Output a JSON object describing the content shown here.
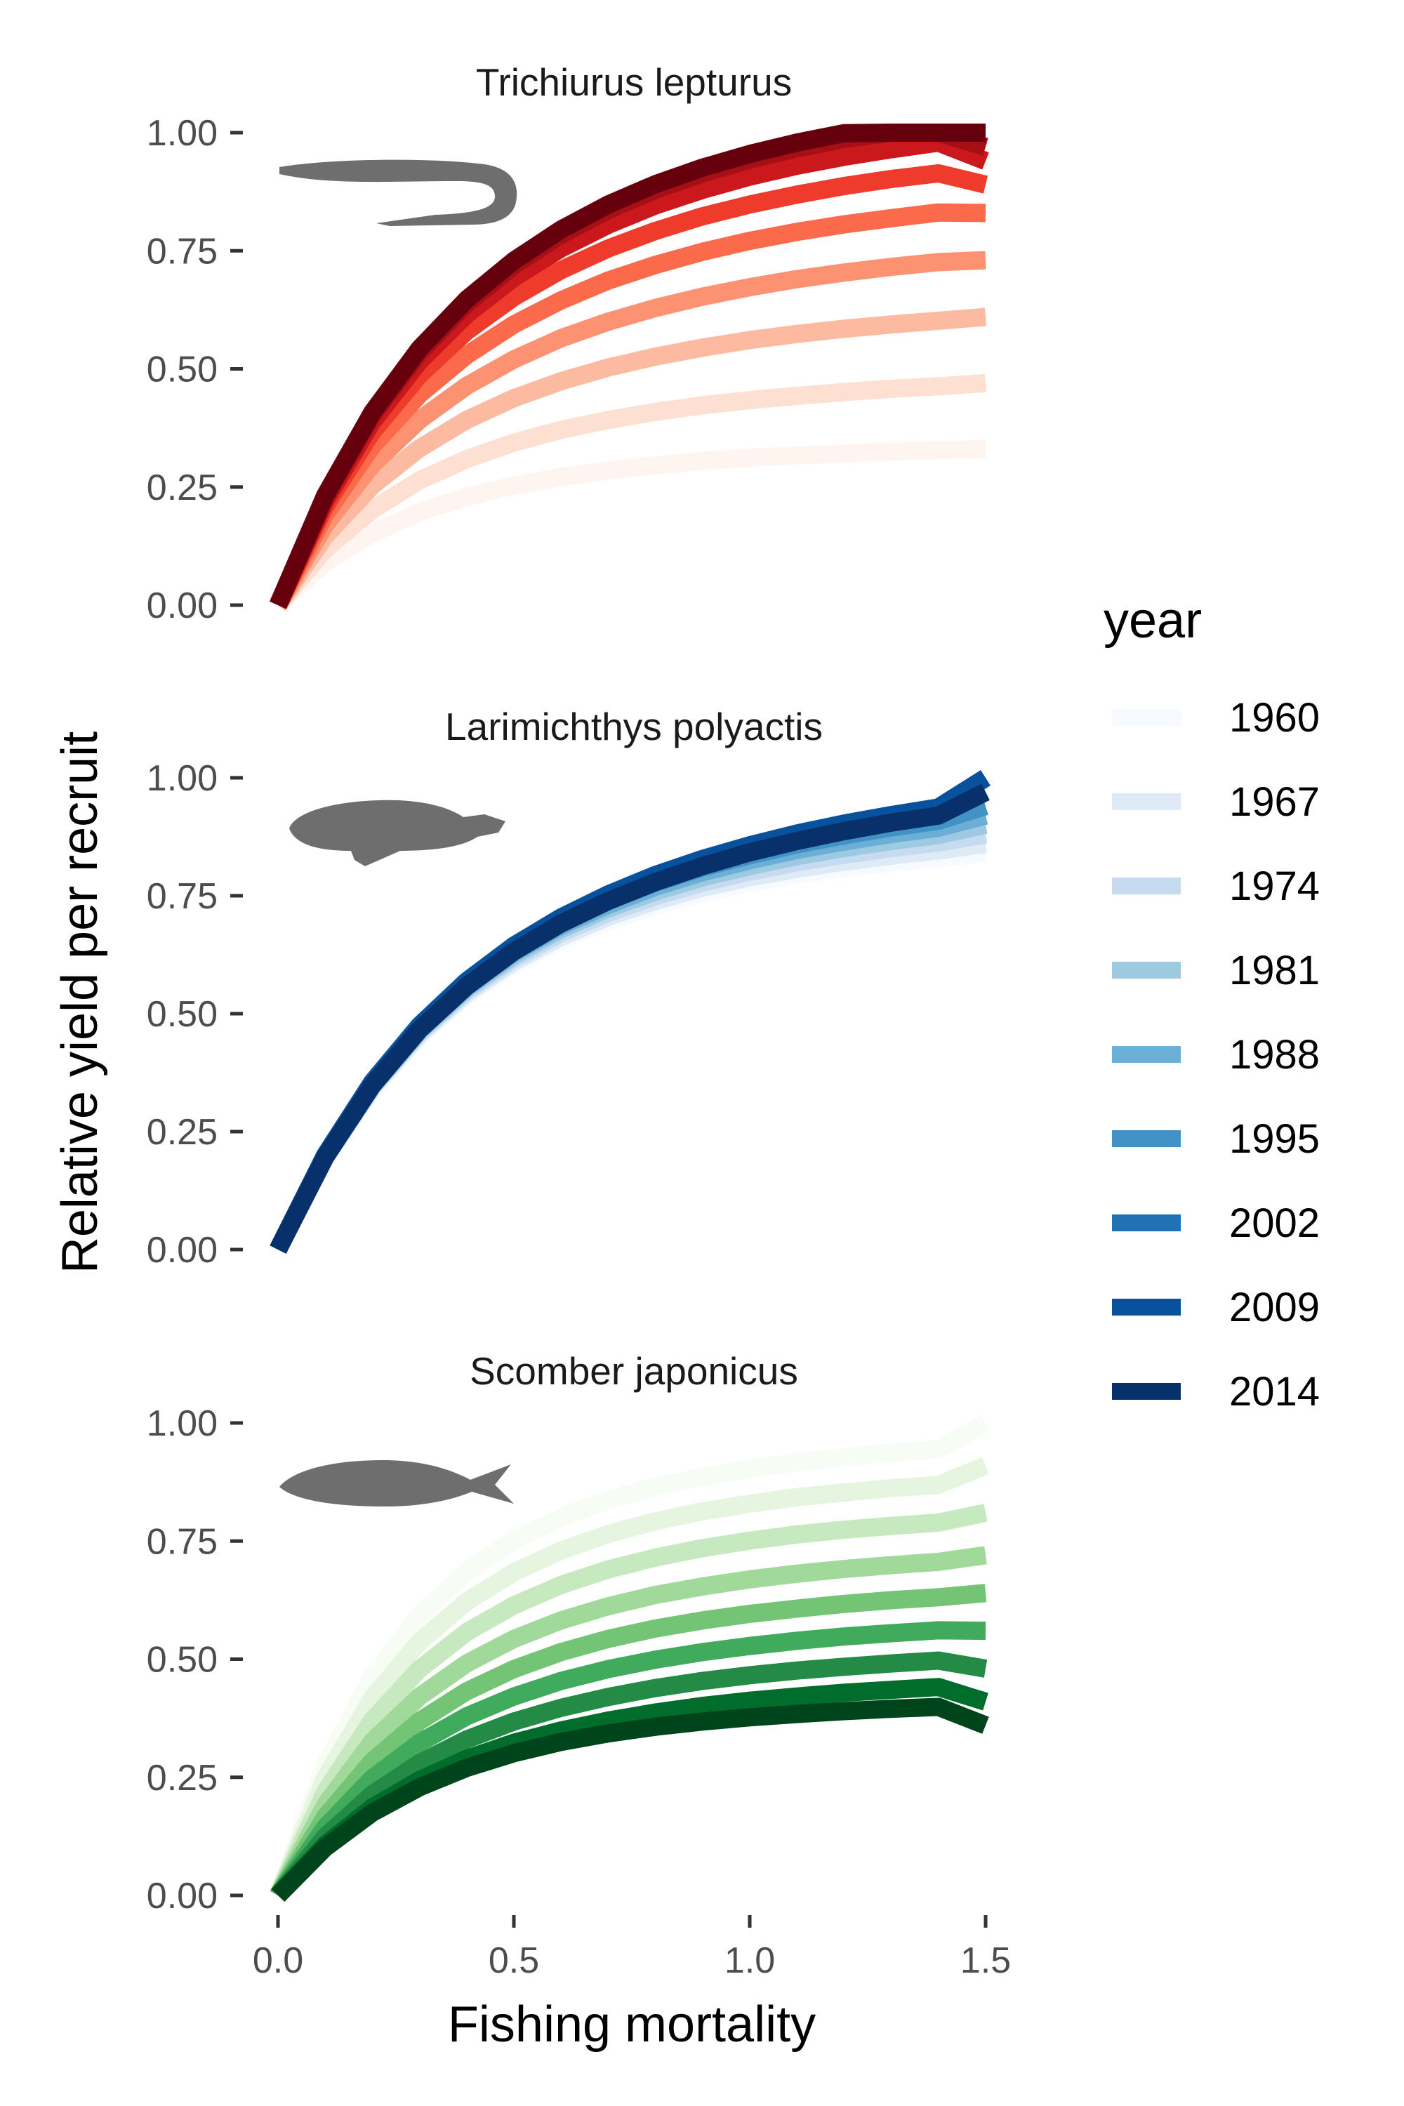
{
  "figure": {
    "xlabel": "Fishing mortality",
    "ylabel": "Relative yield per recruit"
  },
  "legend": {
    "title": "year",
    "position": "right",
    "labels": [
      "1960",
      "1967",
      "1974",
      "1981",
      "1988",
      "1995",
      "2002",
      "2009",
      "2014"
    ],
    "key_colors": [
      "#F7FBFF",
      "#DEEBF7",
      "#C6DBEF",
      "#9ECAE1",
      "#6BAED6",
      "#4292C6",
      "#2171B5",
      "#08519C",
      "#08306B"
    ]
  },
  "chart_data": [
    {
      "type": "line",
      "title": "Trichiurus lepturus",
      "icon": "ribbonfish-silhouette-icon",
      "xlim": [
        0,
        1.5
      ],
      "ylim": [
        0,
        1.0
      ],
      "x_ticks": [
        "0.0",
        "0.5",
        "1.0",
        "1.5"
      ],
      "y_ticks": [
        "0.00",
        "0.25",
        "0.50",
        "0.75",
        "1.00"
      ],
      "x": [
        0,
        0.1,
        0.2,
        0.3,
        0.4,
        0.5,
        0.6,
        0.7,
        0.8,
        0.9,
        1.0,
        1.1,
        1.2,
        1.3,
        1.4,
        1.5
      ],
      "series": [
        {
          "year": "1960",
          "color": "#FFF5F0",
          "values": [
            0.0,
            0.09,
            0.152,
            0.197,
            0.229,
            0.253,
            0.271,
            0.285,
            0.296,
            0.305,
            0.312,
            0.317,
            0.321,
            0.325,
            0.328,
            0.33
          ]
        },
        {
          "year": "1967",
          "color": "#FEE0D2",
          "values": [
            0.0,
            0.118,
            0.202,
            0.264,
            0.309,
            0.344,
            0.371,
            0.392,
            0.409,
            0.423,
            0.434,
            0.443,
            0.451,
            0.458,
            0.463,
            0.47
          ]
        },
        {
          "year": "1974",
          "color": "#FCBBA1",
          "values": [
            0.0,
            0.146,
            0.253,
            0.332,
            0.392,
            0.438,
            0.474,
            0.503,
            0.526,
            0.545,
            0.561,
            0.574,
            0.585,
            0.594,
            0.602,
            0.61
          ]
        },
        {
          "year": "1981",
          "color": "#FC9272",
          "values": [
            0.0,
            0.17,
            0.297,
            0.392,
            0.464,
            0.52,
            0.565,
            0.6,
            0.629,
            0.653,
            0.673,
            0.69,
            0.704,
            0.716,
            0.726,
            0.73
          ]
        },
        {
          "year": "1988",
          "color": "#FB6A4A",
          "values": [
            0.0,
            0.192,
            0.337,
            0.446,
            0.529,
            0.594,
            0.645,
            0.687,
            0.72,
            0.748,
            0.771,
            0.79,
            0.806,
            0.819,
            0.831,
            0.83
          ]
        },
        {
          "year": "1995",
          "color": "#EF3B2C",
          "values": [
            0.0,
            0.209,
            0.367,
            0.487,
            0.58,
            0.652,
            0.709,
            0.755,
            0.792,
            0.823,
            0.848,
            0.869,
            0.887,
            0.902,
            0.914,
            0.89
          ]
        },
        {
          "year": "2002",
          "color": "#CB181D",
          "values": [
            0.0,
            0.22,
            0.388,
            0.516,
            0.615,
            0.693,
            0.755,
            0.805,
            0.846,
            0.879,
            0.907,
            0.93,
            0.949,
            0.965,
            0.979,
            0.94
          ]
        },
        {
          "year": "2009",
          "color": "#A50F15",
          "values": [
            0.0,
            0.228,
            0.402,
            0.535,
            0.638,
            0.719,
            0.784,
            0.836,
            0.879,
            0.914,
            0.943,
            0.967,
            0.987,
            1.0,
            1.0,
            0.97
          ]
        },
        {
          "year": "2014",
          "color": "#67000D",
          "values": [
            0.0,
            0.232,
            0.408,
            0.543,
            0.647,
            0.729,
            0.795,
            0.848,
            0.891,
            0.926,
            0.955,
            0.979,
            0.999,
            1.0,
            1.0,
            1.0
          ]
        }
      ]
    },
    {
      "type": "line",
      "title": "Larimichthys polyactis",
      "icon": "croaker-silhouette-icon",
      "xlim": [
        0,
        1.5
      ],
      "ylim": [
        0,
        1.0
      ],
      "x_ticks": [
        "0.0",
        "0.5",
        "1.0",
        "1.5"
      ],
      "y_ticks": [
        "0.00",
        "0.25",
        "0.50",
        "0.75",
        "1.00"
      ],
      "x": [
        0,
        0.1,
        0.2,
        0.3,
        0.4,
        0.5,
        0.6,
        0.7,
        0.8,
        0.9,
        1.0,
        1.1,
        1.2,
        1.3,
        1.4,
        1.5
      ],
      "series": [
        {
          "year": "1960",
          "color": "#F7FBFF",
          "values": [
            0.0,
            0.193,
            0.34,
            0.452,
            0.537,
            0.603,
            0.655,
            0.696,
            0.729,
            0.756,
            0.777,
            0.795,
            0.809,
            0.82,
            0.83,
            0.84
          ]
        },
        {
          "year": "1967",
          "color": "#DEEBF7",
          "values": [
            0.0,
            0.194,
            0.343,
            0.456,
            0.543,
            0.61,
            0.663,
            0.705,
            0.739,
            0.767,
            0.789,
            0.807,
            0.822,
            0.835,
            0.846,
            0.86
          ]
        },
        {
          "year": "1974",
          "color": "#C6DBEF",
          "values": [
            0.0,
            0.195,
            0.345,
            0.46,
            0.548,
            0.617,
            0.671,
            0.714,
            0.749,
            0.778,
            0.801,
            0.821,
            0.837,
            0.851,
            0.863,
            0.88
          ]
        },
        {
          "year": "1981",
          "color": "#9ECAE1",
          "values": [
            0.0,
            0.196,
            0.347,
            0.463,
            0.553,
            0.623,
            0.679,
            0.723,
            0.759,
            0.789,
            0.813,
            0.834,
            0.851,
            0.866,
            0.879,
            0.9
          ]
        },
        {
          "year": "1988",
          "color": "#6BAED6",
          "values": [
            0.0,
            0.197,
            0.349,
            0.466,
            0.557,
            0.629,
            0.686,
            0.731,
            0.769,
            0.8,
            0.825,
            0.847,
            0.865,
            0.881,
            0.894,
            0.92
          ]
        },
        {
          "year": "1995",
          "color": "#4292C6",
          "values": [
            0.0,
            0.198,
            0.351,
            0.469,
            0.561,
            0.634,
            0.692,
            0.739,
            0.778,
            0.81,
            0.836,
            0.859,
            0.878,
            0.895,
            0.909,
            0.94
          ]
        },
        {
          "year": "2002",
          "color": "#2171B5",
          "values": [
            0.0,
            0.199,
            0.353,
            0.472,
            0.565,
            0.639,
            0.698,
            0.746,
            0.786,
            0.819,
            0.847,
            0.871,
            0.891,
            0.908,
            0.923,
            0.97
          ]
        },
        {
          "year": "2009",
          "color": "#08519C",
          "values": [
            0.0,
            0.2,
            0.355,
            0.475,
            0.569,
            0.644,
            0.704,
            0.753,
            0.794,
            0.828,
            0.857,
            0.882,
            0.903,
            0.921,
            0.937,
            1.0
          ]
        },
        {
          "year": "2014",
          "color": "#08306B",
          "values": [
            0.0,
            0.196,
            0.348,
            0.466,
            0.558,
            0.632,
            0.691,
            0.739,
            0.779,
            0.813,
            0.842,
            0.866,
            0.887,
            0.905,
            0.92,
            0.97
          ]
        }
      ]
    },
    {
      "type": "line",
      "title": "Scomber japonicus",
      "icon": "mackerel-silhouette-icon",
      "xlim": [
        0,
        1.5
      ],
      "ylim": [
        0,
        1.0
      ],
      "x_ticks": [
        "0.0",
        "0.5",
        "1.0",
        "1.5"
      ],
      "y_ticks": [
        "0.00",
        "0.25",
        "0.50",
        "0.75",
        "1.00"
      ],
      "x": [
        0,
        0.1,
        0.2,
        0.3,
        0.4,
        0.5,
        0.6,
        0.7,
        0.8,
        0.9,
        1.0,
        1.1,
        1.2,
        1.3,
        1.4,
        1.5
      ],
      "series": [
        {
          "year": "1960",
          "color": "#F7FCF5",
          "values": [
            0.0,
            0.276,
            0.463,
            0.593,
            0.685,
            0.752,
            0.8,
            0.837,
            0.865,
            0.886,
            0.903,
            0.917,
            0.928,
            0.937,
            0.944,
            1.0
          ]
        },
        {
          "year": "1967",
          "color": "#E5F5E0",
          "values": [
            0.0,
            0.248,
            0.418,
            0.537,
            0.622,
            0.684,
            0.73,
            0.765,
            0.792,
            0.813,
            0.829,
            0.843,
            0.853,
            0.862,
            0.869,
            0.91
          ]
        },
        {
          "year": "1974",
          "color": "#C7E9C0",
          "values": [
            0.0,
            0.219,
            0.371,
            0.479,
            0.557,
            0.614,
            0.657,
            0.69,
            0.715,
            0.735,
            0.751,
            0.764,
            0.774,
            0.782,
            0.789,
            0.81
          ]
        },
        {
          "year": "1981",
          "color": "#A1D99B",
          "values": [
            0.0,
            0.191,
            0.326,
            0.421,
            0.491,
            0.543,
            0.582,
            0.612,
            0.636,
            0.654,
            0.669,
            0.681,
            0.691,
            0.699,
            0.706,
            0.72
          ]
        },
        {
          "year": "1988",
          "color": "#74C476",
          "values": [
            0.0,
            0.166,
            0.284,
            0.369,
            0.432,
            0.479,
            0.515,
            0.543,
            0.565,
            0.582,
            0.596,
            0.607,
            0.617,
            0.625,
            0.631,
            0.64
          ]
        },
        {
          "year": "1995",
          "color": "#41AB5D",
          "values": [
            0.0,
            0.144,
            0.248,
            0.323,
            0.379,
            0.421,
            0.454,
            0.479,
            0.499,
            0.515,
            0.528,
            0.539,
            0.548,
            0.555,
            0.561,
            0.56
          ]
        },
        {
          "year": "2002",
          "color": "#238B45",
          "values": [
            0.0,
            0.124,
            0.214,
            0.28,
            0.33,
            0.368,
            0.397,
            0.42,
            0.439,
            0.454,
            0.466,
            0.476,
            0.484,
            0.491,
            0.497,
            0.48
          ]
        },
        {
          "year": "2009",
          "color": "#006D2C",
          "values": [
            0.0,
            0.107,
            0.186,
            0.244,
            0.289,
            0.323,
            0.349,
            0.37,
            0.387,
            0.401,
            0.412,
            0.421,
            0.429,
            0.435,
            0.441,
            0.41
          ]
        },
        {
          "year": "2014",
          "color": "#00441B",
          "values": [
            0.0,
            0.101,
            0.175,
            0.229,
            0.27,
            0.301,
            0.325,
            0.343,
            0.357,
            0.368,
            0.377,
            0.384,
            0.39,
            0.395,
            0.399,
            0.36
          ]
        }
      ]
    }
  ]
}
